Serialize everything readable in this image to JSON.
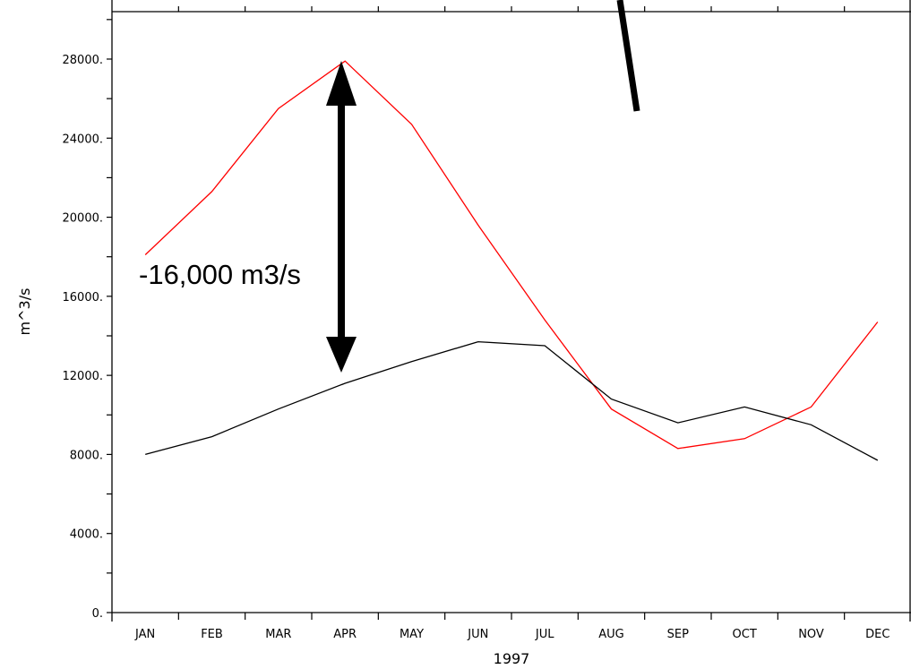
{
  "chart_data": {
    "type": "line",
    "title": "",
    "xlabel": "1997",
    "ylabel": "m^3/s",
    "categories": [
      "JAN",
      "FEB",
      "MAR",
      "APR",
      "MAY",
      "JUN",
      "JUL",
      "AUG",
      "SEP",
      "OCT",
      "NOV",
      "DEC"
    ],
    "ylim": [
      0,
      30400
    ],
    "yticks": [
      0,
      4000,
      8000,
      12000,
      16000,
      20000,
      24000,
      28000
    ],
    "ytick_labels": [
      "0.",
      "4000.",
      "8000.",
      "12000.",
      "16000.",
      "20000.",
      "24000.",
      "28000."
    ],
    "grid": false,
    "legend": "none",
    "series": [
      {
        "color": "#ff0000",
        "values": [
          18100,
          21300,
          25500,
          27900,
          24700,
          19600,
          14800,
          10300,
          8300,
          8800,
          10400,
          14700
        ]
      },
      {
        "color": "#000000",
        "values": [
          8000,
          8900,
          10300,
          11600,
          12700,
          13700,
          13500,
          10800,
          9600,
          10400,
          9500,
          7700
        ]
      }
    ],
    "annotations": [
      {
        "text": "-16,000 m3/s",
        "type": "double-arrow",
        "x": "APR",
        "y_from": 27900,
        "y_to": 11600
      }
    ]
  }
}
